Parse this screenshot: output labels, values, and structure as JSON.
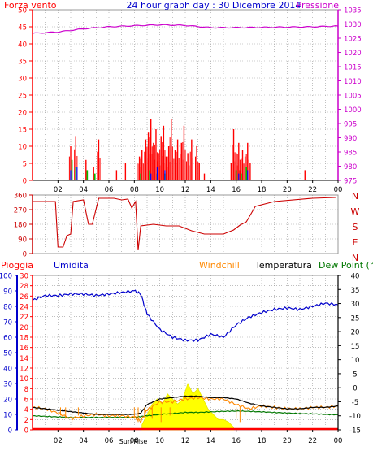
{
  "header": {
    "left_label": "Forza vento",
    "title": "24 hour graph day : 30 Dicembre 2014",
    "right_label": "Pressione"
  },
  "labels": {
    "pioggia": "Pioggia",
    "umidita": "Umidita",
    "windchill": "Windchill",
    "temperatura": "Temperatura",
    "dewpoint": "Dew Point (°C",
    "sun_marker": "Sun Rise"
  },
  "colors": {
    "wind": "#ff0000",
    "gust": "#00bb00",
    "wind_avg": "#0000ff",
    "pressure": "#cc00cc",
    "direction": "#cc0000",
    "humidity": "#0000cc",
    "temperature": "#000000",
    "windchill": "#ff8800",
    "dewpoint": "#007700",
    "rain": "#ff0000",
    "solar": "#ffff00",
    "grid": "#999999"
  },
  "chart_data": [
    {
      "id": "wind-pressure",
      "type": "line",
      "x_ticks": [
        "02",
        "04",
        "06",
        "08",
        "10",
        "12",
        "14",
        "16",
        "18",
        "20",
        "22",
        "00"
      ],
      "y_left": {
        "label": "Forza vento",
        "ylim": [
          0,
          50
        ],
        "ticks": [
          "0",
          "5",
          "10",
          "15",
          "20",
          "25",
          "30",
          "35",
          "40",
          "45",
          "50"
        ]
      },
      "y_right": {
        "label": "Pressione",
        "ylim": [
          975,
          1035
        ],
        "ticks": [
          "975",
          "980",
          "985",
          "990",
          "995",
          "1000",
          "1005",
          "1010",
          "1015",
          "1020",
          "1025",
          "1030",
          "1035"
        ]
      },
      "grid": true,
      "series": [
        {
          "name": "Pressione",
          "x": [
            0,
            2,
            4,
            6,
            8,
            10,
            12,
            14,
            16,
            18,
            20,
            22,
            24
          ],
          "values": [
            1026.7,
            1027.2,
            1028.3,
            1029.0,
            1029.4,
            1029.7,
            1029.5,
            1028.7,
            1028.7,
            1028.8,
            1028.9,
            1029.0,
            1029.3
          ]
        },
        {
          "x": [
            3.0,
            3.4,
            4.2,
            4.8,
            5.2,
            6.6,
            7.3,
            8.4,
            8.6,
            8.9,
            9.1,
            9.3,
            9.5,
            9.7,
            9.9,
            10.1,
            10.3,
            10.5,
            10.7,
            10.9,
            11.2,
            11.4,
            11.7,
            11.9,
            12.2,
            12.5,
            12.9,
            13.1,
            13.5,
            15.6,
            15.8,
            16.0,
            16.2,
            16.3,
            16.5,
            16.7,
            16.9,
            17.1,
            21.4
          ],
          "values": [
            10,
            13,
            6,
            4,
            12,
            3,
            5,
            7,
            9,
            12,
            14,
            18,
            11,
            15,
            8,
            13,
            16,
            7,
            10,
            18,
            9,
            12,
            11,
            16,
            8,
            12,
            10,
            5,
            2,
            5,
            15,
            8,
            11,
            3,
            9,
            7,
            11,
            5,
            3
          ]
        },
        {
          "x": [
            3.1,
            3.4,
            4.3,
            4.9,
            8.5,
            9.2,
            9.8,
            10.4,
            16.0,
            16.4,
            16.8
          ],
          "values": [
            6,
            4,
            3,
            2,
            2,
            3,
            2,
            2,
            3,
            2,
            4
          ]
        },
        {
          "x": [
            3.0,
            3.5,
            9.3,
            9.8,
            10.4,
            16.2,
            16.9
          ],
          "values": [
            3,
            4,
            2,
            4,
            3,
            2,
            3
          ]
        }
      ]
    },
    {
      "id": "direction",
      "type": "line",
      "x_ticks": [
        "02",
        "04",
        "06",
        "08",
        "10",
        "12",
        "14",
        "16",
        "18",
        "20",
        "22",
        "00"
      ],
      "y_left": {
        "ylim": [
          0,
          360
        ],
        "ticks": [
          "0",
          "90",
          "180",
          "270",
          "360"
        ]
      },
      "y_right": {
        "ticks": [
          "N",
          "W",
          "S",
          "E",
          "N"
        ]
      },
      "grid": true,
      "series": [
        {
          "name": "Direzione",
          "x": [
            0,
            1.8,
            2.0,
            2.4,
            2.7,
            3.0,
            3.2,
            4.0,
            4.4,
            4.7,
            5.2,
            6.4,
            7.0,
            7.5,
            7.8,
            8.1,
            8.3,
            8.5,
            9.5,
            10.5,
            11.5,
            12.5,
            13.5,
            15.0,
            15.8,
            16.3,
            16.8,
            17.5,
            19.0,
            22.0,
            23.8
          ],
          "values": [
            320,
            320,
            40,
            40,
            110,
            120,
            320,
            330,
            180,
            180,
            340,
            340,
            330,
            335,
            280,
            320,
            20,
            170,
            180,
            170,
            170,
            140,
            120,
            120,
            145,
            175,
            195,
            290,
            320,
            340,
            345
          ]
        }
      ]
    },
    {
      "id": "rain-humidity-temperature",
      "type": "line",
      "x_ticks": [
        "02",
        "04",
        "06",
        "08",
        "10",
        "12",
        "14",
        "16",
        "18",
        "20",
        "22",
        "00"
      ],
      "y_axis_pioggia": {
        "ylim": [
          0,
          30
        ],
        "ticks": [
          "0",
          "2",
          "4",
          "6",
          "8",
          "10",
          "12",
          "14",
          "16",
          "18",
          "20",
          "22",
          "24",
          "26",
          "28",
          "30"
        ]
      },
      "y_axis_umidita": {
        "ylim": [
          0,
          100
        ],
        "ticks": [
          "0",
          "10",
          "20",
          "30",
          "40",
          "50",
          "60",
          "70",
          "80",
          "90",
          "100"
        ]
      },
      "y_axis_temperatura": {
        "ylim": [
          -15,
          40
        ],
        "ticks": [
          "-15",
          "-10",
          "-5",
          "0",
          "5",
          "10",
          "15",
          "20",
          "25",
          "30",
          "35",
          "40"
        ]
      },
      "grid": true,
      "series": [
        {
          "name": "Umidita",
          "x": [
            0,
            1,
            2,
            3,
            4,
            5,
            6,
            7,
            8,
            8.5,
            9,
            10,
            11,
            12,
            13,
            14,
            15,
            16,
            17,
            18,
            19,
            20,
            21,
            22,
            23,
            24
          ],
          "values": [
            84,
            87,
            87,
            88,
            88,
            87,
            88,
            89,
            90,
            88,
            75,
            65,
            60,
            58,
            58,
            62,
            60,
            68,
            73,
            76,
            78,
            79,
            78,
            80,
            82,
            81
          ]
        },
        {
          "name": "Temperatura",
          "x": [
            0,
            1,
            2,
            3,
            4,
            5,
            6,
            7,
            8,
            8.5,
            9,
            10,
            11,
            12,
            13,
            14,
            15,
            16,
            17,
            18,
            19,
            20,
            21,
            22,
            23,
            24
          ],
          "values": [
            -7,
            -7.5,
            -8,
            -8.5,
            -9,
            -9.5,
            -9.5,
            -9.5,
            -9.5,
            -9,
            -6,
            -4,
            -3.5,
            -3,
            -3,
            -3.5,
            -3.5,
            -4,
            -5.5,
            -6.5,
            -7,
            -7.5,
            -7.5,
            -7,
            -7,
            -6.5
          ]
        },
        {
          "name": "Windchill",
          "x": [
            0,
            1,
            2,
            3,
            4,
            5,
            6,
            7,
            8,
            8.5,
            9,
            10,
            11,
            12,
            13,
            14,
            15,
            16,
            17,
            18,
            19,
            20,
            21,
            22,
            23,
            24
          ],
          "values": [
            -7,
            -7.5,
            -9,
            -11,
            -10,
            -9.5,
            -10,
            -10,
            -10.5,
            -12,
            -8,
            -5,
            -5,
            -4,
            -3.5,
            -4,
            -4,
            -6,
            -7.5,
            -6.5,
            -7,
            -7.5,
            -7.5,
            -7,
            -7,
            -6.5
          ]
        },
        {
          "name": "Dew Point",
          "x": [
            0,
            1,
            2,
            3,
            4,
            5,
            6,
            7,
            8,
            8.5,
            9,
            10,
            11,
            12,
            13,
            14,
            15,
            16,
            17,
            18,
            19,
            20,
            21,
            22,
            23,
            24
          ],
          "values": [
            -10,
            -10.2,
            -10.4,
            -10.6,
            -10.6,
            -10.6,
            -10.6,
            -10.6,
            -10.5,
            -10.3,
            -10,
            -9.5,
            -9.2,
            -8.8,
            -8.8,
            -8.6,
            -8.4,
            -8.3,
            -8.4,
            -8.6,
            -8.8,
            -9,
            -9.2,
            -9.3,
            -9.5,
            -9.6
          ]
        },
        {
          "name": "Pioggia",
          "x": [
            0,
            24
          ],
          "values": [
            0,
            0
          ]
        },
        {
          "name": "Solar",
          "x": [
            8.6,
            9.0,
            9.4,
            9.8,
            10.2,
            10.6,
            11.0,
            11.4,
            11.8,
            12.2,
            12.6,
            13.0,
            13.4,
            13.8,
            14.2,
            14.6,
            15.0,
            15.4,
            15.8
          ],
          "values": [
            1,
            3,
            5,
            6,
            5,
            7,
            6,
            5,
            6,
            9,
            7,
            8,
            6,
            4,
            3,
            2,
            2,
            1.5,
            0.5
          ]
        }
      ]
    }
  ]
}
